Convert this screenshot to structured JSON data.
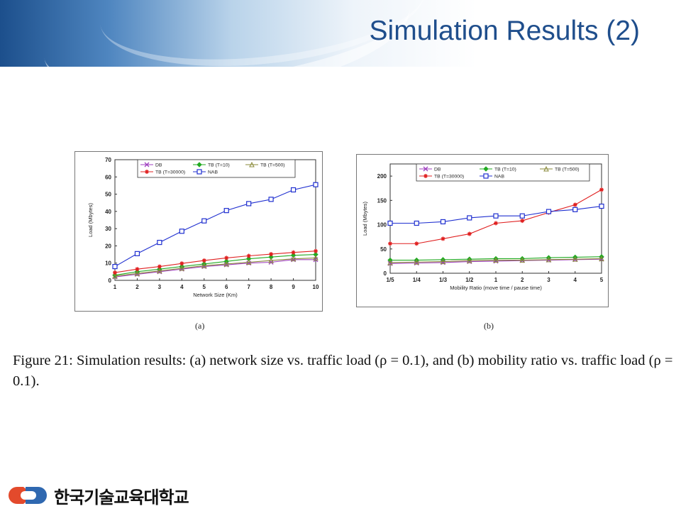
{
  "slide": {
    "title": "Simulation Results (2)",
    "caption": "Figure 21: Simulation results: (a) network size vs. traffic load (ρ = 0.1), and (b) mobility ratio vs. traffic load (ρ = 0.1).",
    "subfig_a": "(a)",
    "subfig_b": "(b)",
    "university": "한국기술교육대학교",
    "logo_icon": "university-logo-icon"
  },
  "chart_data": [
    {
      "type": "line",
      "xlabel": "Network Size (Km)",
      "ylabel": "Load (Mbytes)",
      "x": [
        1,
        2,
        3,
        4,
        5,
        6,
        7,
        8,
        9,
        10
      ],
      "ylim": [
        0,
        70
      ],
      "yticks": [
        0,
        10,
        20,
        30,
        40,
        50,
        60,
        70
      ],
      "grid": false,
      "legend": "top",
      "series": [
        {
          "name": "DB",
          "color": "#a040c0",
          "marker": "x",
          "values": [
            2,
            3.5,
            5,
            6.5,
            8,
            9,
            10,
            10.5,
            12,
            12
          ]
        },
        {
          "name": "TB (T=10)",
          "color": "#22aa22",
          "marker": "diamond",
          "values": [
            3,
            5,
            6.5,
            8,
            9.5,
            11,
            12.5,
            13.5,
            14.5,
            15
          ]
        },
        {
          "name": "TB (T=500)",
          "color": "#8a8a3a",
          "marker": "triangle",
          "values": [
            2.5,
            4,
            5.5,
            7,
            8.5,
            9.5,
            10.5,
            11.5,
            12.5,
            13
          ]
        },
        {
          "name": "TB (T=30000)",
          "color": "#e02020",
          "marker": "star",
          "values": [
            4.5,
            6.5,
            8,
            9.8,
            11.5,
            13,
            14.2,
            15.2,
            16.2,
            17
          ]
        },
        {
          "name": "NAB",
          "color": "#2030d0",
          "marker": "square",
          "values": [
            8,
            15.5,
            22,
            28.5,
            34.5,
            40.5,
            44.5,
            47,
            52.5,
            55.5
          ]
        }
      ]
    },
    {
      "type": "line",
      "xlabel": "Mobility Ratio (move time / pause time)",
      "ylabel": "Load (Mbytes)",
      "categories": [
        "1/5",
        "1/4",
        "1/3",
        "1/2",
        "1",
        "2",
        "3",
        "4",
        "5"
      ],
      "ylim": [
        0,
        225
      ],
      "yticks": [
        0,
        50,
        100,
        150,
        200
      ],
      "grid": false,
      "legend": "top",
      "series": [
        {
          "name": "DB",
          "color": "#a040c0",
          "marker": "x",
          "values": [
            20,
            21,
            22,
            24,
            25,
            26,
            27,
            28,
            29
          ]
        },
        {
          "name": "TB (T=10)",
          "color": "#22aa22",
          "marker": "diamond",
          "values": [
            27,
            27,
            28,
            29,
            30,
            30,
            32,
            33,
            34
          ]
        },
        {
          "name": "TB (T=500)",
          "color": "#8a8a3a",
          "marker": "triangle",
          "values": [
            22,
            23,
            24,
            26,
            27,
            27,
            28,
            29,
            30
          ]
        },
        {
          "name": "TB (T=30000)",
          "color": "#e02020",
          "marker": "star",
          "values": [
            61,
            61,
            71,
            81,
            103,
            108,
            125,
            141,
            172
          ]
        },
        {
          "name": "NAB",
          "color": "#2030d0",
          "marker": "square",
          "values": [
            103,
            103,
            106,
            114,
            118,
            118,
            127,
            131,
            138
          ]
        }
      ]
    }
  ]
}
